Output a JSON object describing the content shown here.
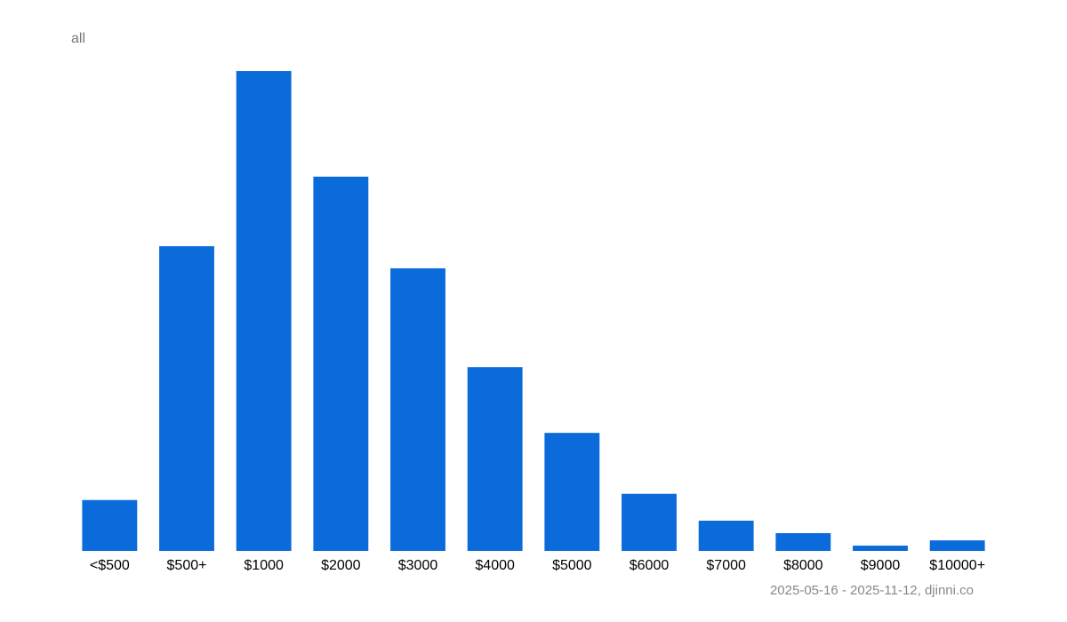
{
  "chart_data": {
    "type": "bar",
    "title": "all",
    "source": "2025-05-16 - 2025-11-12, djinni.co",
    "categories": [
      "<$500",
      "$500+",
      "$1000",
      "$2000",
      "$3000",
      "$4000",
      "$5000",
      "$6000",
      "$7000",
      "$8000",
      "$9000",
      "$10000+"
    ],
    "values": [
      10.6,
      63.5,
      100,
      78,
      58.9,
      38.3,
      24.6,
      11.9,
      6.3,
      3.7,
      1.1,
      2.2
    ],
    "color": "#0b6bdb",
    "grid": false
  }
}
